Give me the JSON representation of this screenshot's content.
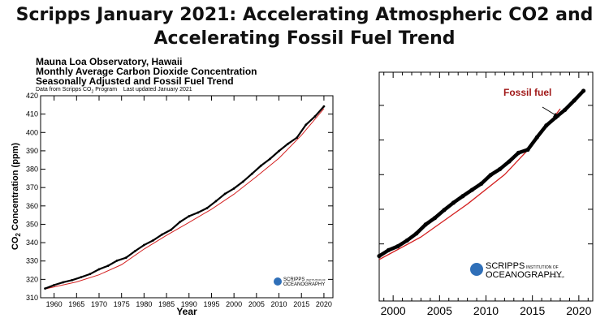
{
  "slide": {
    "title_line1": "Scripps January 2021: Accelerating Atmospheric CO2 and",
    "title_line2": "Accelerating Fossil Fuel Trend"
  },
  "left_chart": {
    "title_line1": "Mauna Loa Observatory, Hawaii",
    "title_line2": "Monthly Average Carbon Dioxide Concentration",
    "title_line3": "Seasonally Adjusted and Fossil Fuel Trend",
    "source_pre": "Data from Scripps CO",
    "source_post": " Program",
    "last_updated": "Last updated January 2021",
    "logo_main": "SCRIPPS",
    "logo_small": "INSTITUTION OF",
    "logo_second": "OCEANOGRAPHY"
  },
  "right_chart": {
    "annotation": "Fossil fuel",
    "logo_main": "SCRIPPS",
    "logo_small": "INSTITUTION OF",
    "logo_second": "OCEANOGRAPHY",
    "logo_tail": "UC San Diego"
  },
  "colors": {
    "data": "#000000",
    "trend": "#d42020",
    "annotation": "#a01818"
  },
  "chart_data": [
    {
      "type": "line",
      "xlabel": "Year",
      "ylabel_pre": "CO",
      "ylabel_sub": "2",
      "ylabel_post": " Concentration (ppm)",
      "xlim": [
        1957,
        2022
      ],
      "ylim": [
        310,
        420
      ],
      "xticks": [
        1960,
        1965,
        1970,
        1975,
        1980,
        1985,
        1990,
        1995,
        2000,
        2005,
        2010,
        2015,
        2020
      ],
      "yticks": [
        310,
        320,
        330,
        340,
        350,
        360,
        370,
        380,
        390,
        400,
        410,
        420
      ],
      "grid": false,
      "series": [
        {
          "x": [
            1958,
            1960,
            1962,
            1964,
            1966,
            1968,
            1970,
            1972,
            1974,
            1976,
            1978,
            1980,
            1982,
            1984,
            1986,
            1988,
            1990,
            1992,
            1994,
            1996,
            1998,
            2000,
            2002,
            2004,
            2006,
            2008,
            2010,
            2012,
            2014,
            2016,
            2018,
            2020
          ],
          "y": [
            315,
            316.9,
            318.4,
            319.6,
            321.2,
            322.9,
            325.5,
            327.4,
            330.2,
            331.8,
            335.4,
            338.7,
            341.2,
            344.4,
            347.0,
            351.3,
            354.4,
            356.4,
            358.8,
            362.6,
            366.6,
            369.5,
            373.2,
            377.5,
            381.9,
            385.6,
            389.9,
            393.8,
            397.2,
            404.2,
            408.7,
            414.2
          ]
        },
        {
          "x": [
            1958,
            1965,
            1970,
            1975,
            1980,
            1985,
            1990,
            1995,
            2000,
            2005,
            2010,
            2015,
            2020
          ],
          "y": [
            314.8,
            318.6,
            322.5,
            328.0,
            336.5,
            344.0,
            351.0,
            358.2,
            366.4,
            376.0,
            386.0,
            398.5,
            413.0
          ]
        }
      ]
    },
    {
      "type": "line",
      "xlim": [
        1998.5,
        2021.5
      ],
      "ylim": [
        365,
        417
      ],
      "xticks": [
        2000,
        2005,
        2010,
        2015,
        2020
      ],
      "grid": false,
      "series": [
        {
          "x": [
            1998.5,
            1999.5,
            2000.5,
            2001.5,
            2002.5,
            2003.5,
            2004.5,
            2005.5,
            2006.5,
            2007.5,
            2008.5,
            2009.5,
            2010.5,
            2011.5,
            2012.5,
            2013.5,
            2014.5,
            2015.5,
            2016.5,
            2017.5,
            2018.5,
            2019.5,
            2020.5
          ],
          "y": [
            366.5,
            368.2,
            369.3,
            371.0,
            373.0,
            375.6,
            377.5,
            379.8,
            381.9,
            383.8,
            385.6,
            387.4,
            389.9,
            391.6,
            393.8,
            396.3,
            397.2,
            400.8,
            404.2,
            406.5,
            408.7,
            411.4,
            414.2
          ]
        },
        {
          "x": [
            1998.5,
            2003,
            2008,
            2012,
            2015,
            2018
          ],
          "y": [
            365.5,
            372.0,
            381.5,
            390.0,
            398.5,
            409.0
          ]
        }
      ]
    }
  ]
}
